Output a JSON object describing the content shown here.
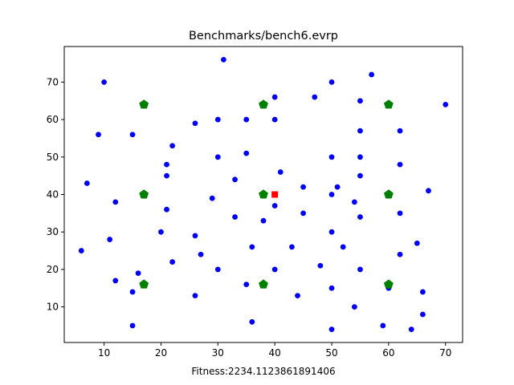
{
  "chart_data": {
    "type": "scatter",
    "title": "Benchmarks/bench6.evrp",
    "xlabel": "Fitness:2234.1123861891406",
    "ylabel": "",
    "xlim": [
      3,
      73
    ],
    "ylim": [
      0.5,
      79.5
    ],
    "xticks": [
      10,
      20,
      30,
      40,
      50,
      60,
      70
    ],
    "yticks": [
      10,
      20,
      30,
      40,
      50,
      60,
      70
    ],
    "grid": false,
    "colors": {
      "customers": "#0000ff",
      "stations": "#008000",
      "depot": "#ff0000"
    },
    "series": [
      {
        "marker": "circle",
        "points": [
          [
            31,
            76
          ],
          [
            10,
            70
          ],
          [
            50,
            70
          ],
          [
            57,
            72
          ],
          [
            40,
            66
          ],
          [
            47,
            66
          ],
          [
            55,
            65
          ],
          [
            70,
            64
          ],
          [
            26,
            59
          ],
          [
            30,
            60
          ],
          [
            35,
            60
          ],
          [
            40,
            60
          ],
          [
            9,
            56
          ],
          [
            15,
            56
          ],
          [
            55,
            57
          ],
          [
            62,
            57
          ],
          [
            22,
            53
          ],
          [
            30,
            50
          ],
          [
            35,
            51
          ],
          [
            50,
            50
          ],
          [
            55,
            50
          ],
          [
            21,
            48
          ],
          [
            62,
            48
          ],
          [
            21,
            45
          ],
          [
            41,
            46
          ],
          [
            55,
            45
          ],
          [
            7,
            43
          ],
          [
            33,
            44
          ],
          [
            45,
            42
          ],
          [
            51,
            42
          ],
          [
            50,
            40
          ],
          [
            54,
            38
          ],
          [
            67,
            41
          ],
          [
            12,
            38
          ],
          [
            29,
            39
          ],
          [
            40,
            37
          ],
          [
            21,
            36
          ],
          [
            33,
            34
          ],
          [
            38,
            33
          ],
          [
            45,
            35
          ],
          [
            55,
            34
          ],
          [
            62,
            35
          ],
          [
            6,
            25
          ],
          [
            11,
            28
          ],
          [
            20,
            30
          ],
          [
            26,
            29
          ],
          [
            50,
            30
          ],
          [
            65,
            27
          ],
          [
            27,
            24
          ],
          [
            36,
            26
          ],
          [
            43,
            26
          ],
          [
            52,
            26
          ],
          [
            62,
            24
          ],
          [
            22,
            22
          ],
          [
            48,
            21
          ],
          [
            30,
            20
          ],
          [
            40,
            20
          ],
          [
            55,
            20
          ],
          [
            12,
            17
          ],
          [
            16,
            19
          ],
          [
            35,
            16
          ],
          [
            15,
            14
          ],
          [
            26,
            13
          ],
          [
            44,
            13
          ],
          [
            50,
            15
          ],
          [
            60,
            15
          ],
          [
            66,
            14
          ],
          [
            54,
            10
          ],
          [
            66,
            8
          ],
          [
            36,
            6
          ],
          [
            15,
            5
          ],
          [
            50,
            4
          ],
          [
            59,
            5
          ],
          [
            64,
            4
          ]
        ]
      },
      {
        "marker": "pentagon",
        "points": [
          [
            17,
            64
          ],
          [
            38,
            64
          ],
          [
            60,
            64
          ],
          [
            17,
            40
          ],
          [
            38,
            40
          ],
          [
            60,
            40
          ],
          [
            17,
            16
          ],
          [
            38,
            16
          ],
          [
            60,
            16
          ]
        ]
      },
      {
        "marker": "square",
        "points": [
          [
            40,
            40
          ]
        ]
      }
    ]
  }
}
